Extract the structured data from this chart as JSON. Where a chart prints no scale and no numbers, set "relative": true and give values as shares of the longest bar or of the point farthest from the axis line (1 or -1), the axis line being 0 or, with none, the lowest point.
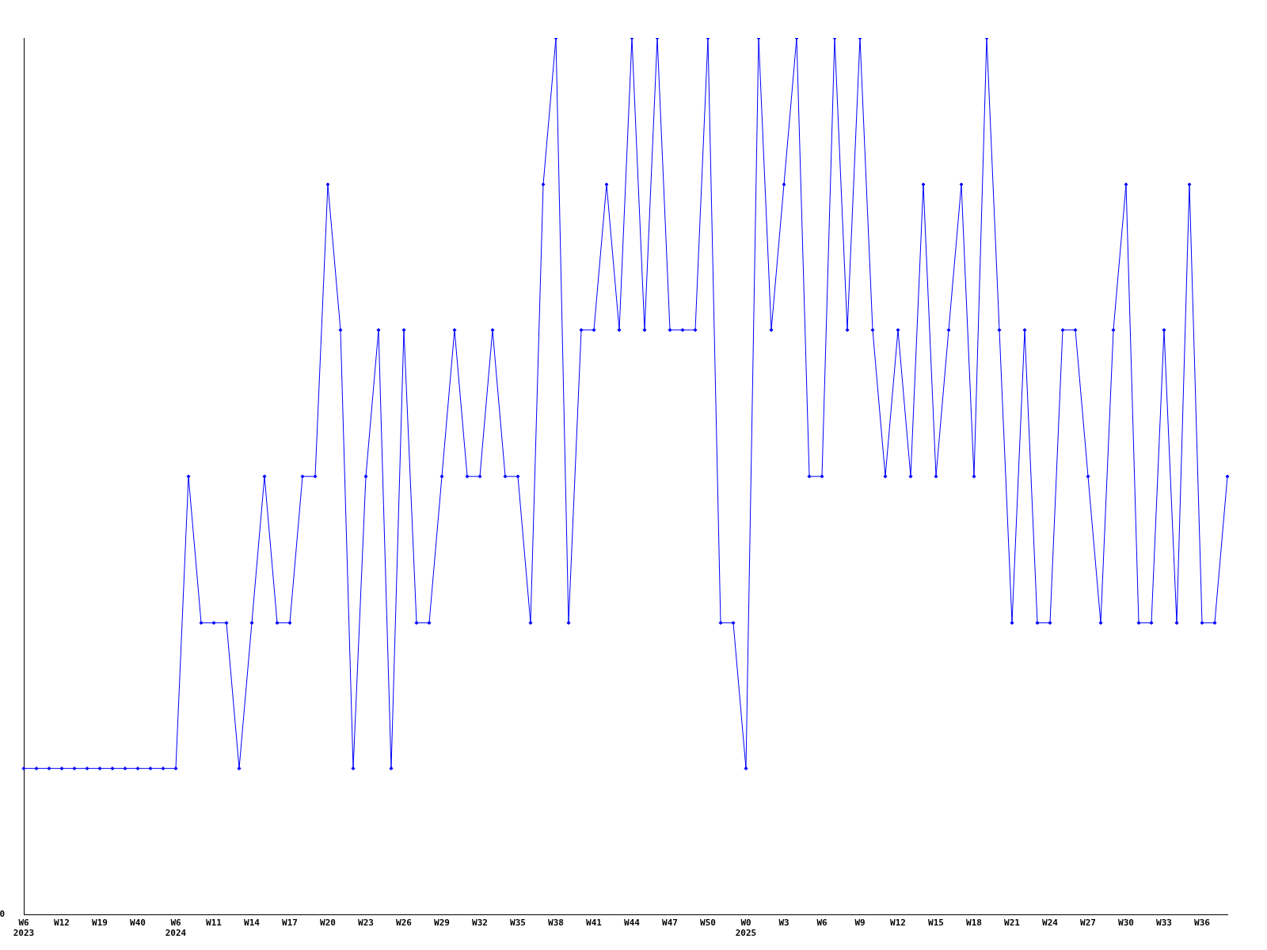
{
  "chart_data": {
    "type": "line",
    "relative": true,
    "marker": "diamond",
    "grid": false,
    "legend": false,
    "annotations": [
      "0"
    ],
    "categories": [
      "W6\n2023",
      null,
      null,
      "W12",
      null,
      null,
      "W19",
      null,
      null,
      "W40",
      null,
      null,
      "W6\n2024",
      null,
      null,
      "W11",
      null,
      null,
      "W14",
      null,
      null,
      "W17",
      null,
      null,
      "W20",
      null,
      null,
      "W23",
      null,
      null,
      "W26",
      null,
      null,
      "W29",
      null,
      null,
      "W32",
      null,
      null,
      "W35",
      null,
      null,
      "W38",
      null,
      null,
      "W41",
      null,
      null,
      "W44",
      null,
      null,
      "W47",
      null,
      null,
      "W50",
      null,
      null,
      "W0\n2025",
      null,
      null,
      "W3",
      null,
      null,
      "W6",
      null,
      null,
      "W9",
      null,
      null,
      "W12",
      null,
      null,
      "W15",
      null,
      null,
      "W18",
      null,
      null,
      "W21",
      null,
      null,
      "W24",
      null,
      null,
      "W27",
      null,
      null,
      "W30",
      null,
      null,
      "W33",
      null,
      null,
      "W36",
      null,
      null
    ],
    "series": [
      {
        "color": "#0000ff",
        "values": [
          0.167,
          0.167,
          0.167,
          0.167,
          0.167,
          0.167,
          0.167,
          0.167,
          0.167,
          0.167,
          0.167,
          0.167,
          0.167,
          0.5,
          0.333,
          0.333,
          0.333,
          0.167,
          0.333,
          0.5,
          0.333,
          0.333,
          0.5,
          0.5,
          0.833,
          0.667,
          0.167,
          0.5,
          0.667,
          0.167,
          0.667,
          0.333,
          0.333,
          0.5,
          0.667,
          0.5,
          0.5,
          0.667,
          0.5,
          0.5,
          0.333,
          0.833,
          1,
          0.333,
          0.667,
          0.667,
          0.833,
          0.667,
          1,
          0.667,
          1,
          0.667,
          0.667,
          0.667,
          1,
          0.333,
          0.333,
          0.167,
          1,
          0.667,
          0.833,
          1,
          0.5,
          0.5,
          1,
          0.667,
          1,
          0.667,
          0.5,
          0.667,
          0.5,
          0.833,
          0.5,
          0.667,
          0.833,
          0.5,
          1,
          0.667,
          0.333,
          0.667,
          0.333,
          0.333,
          0.667,
          0.667,
          0.5,
          0.333,
          0.667,
          0.833,
          0.333,
          0.333,
          0.667,
          0.333,
          0.833,
          0.333,
          0.333,
          0.5
        ]
      }
    ]
  }
}
